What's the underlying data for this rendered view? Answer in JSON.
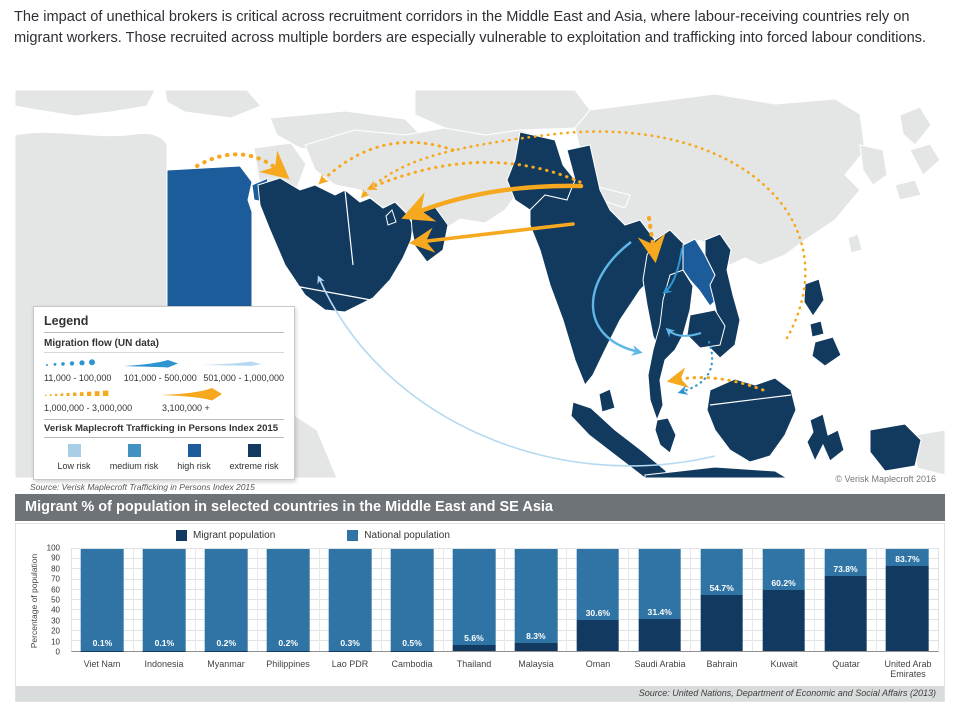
{
  "header": {
    "paragraph": "The impact of unethical brokers is critical across recruitment corridors in the Middle East and Asia, where labour-receiving countries rely on migrant workers. Those recruited across multiple borders are especially vulnerable to exploitation and trafficking into forced labour conditions."
  },
  "map": {
    "legend": {
      "title": "Legend",
      "flow_title": "Migration flow (UN data)",
      "flow_items": [
        {
          "label": "11,000 - 100,000",
          "style": "dotted-blue"
        },
        {
          "label": "101,000 - 500,000",
          "style": "solid-blue"
        },
        {
          "label": "501,000 - 1,000,000",
          "style": "solid-lightblue"
        },
        {
          "label": "1,000,000 - 3,000,000",
          "style": "dotted-orange"
        },
        {
          "label": "3,100,000 +",
          "style": "solid-orange"
        }
      ],
      "index_title": "Verisk Maplecroft Trafficking in Persons Index 2015",
      "risk_items": [
        {
          "label": "Low risk",
          "color": "#a9cfe8"
        },
        {
          "label": "medium risk",
          "color": "#4191c1"
        },
        {
          "label": "high risk",
          "color": "#1d5c9b"
        },
        {
          "label": "extreme risk",
          "color": "#123a5f"
        }
      ]
    },
    "source": "Source: Verisk Maplecroft Trafficking in Persons Index 2015",
    "copyright": "© Verisk Maplecroft 2016",
    "colors": {
      "land": "#e4e6e6",
      "sea": "#ffffff",
      "extreme_risk": "#123a5f",
      "high_risk": "#1d5c9b",
      "medium_risk": "#4191c1",
      "low_risk": "#a9cfe8",
      "flow_orange": "#f6a81e",
      "flow_blue": "#2e95d1",
      "flow_mid_blue": "#5fb7e6",
      "flow_light_blue": "#b5d9f0"
    }
  },
  "chart": {
    "title": "Migrant % of population in selected countries in the Middle East and SE Asia",
    "source": "Source: United Nations, Department of Economic and Social Affairs (2013)"
  },
  "chart_data": {
    "type": "bar",
    "stacked": true,
    "title": "Migrant % of population in selected countries in the Middle East and SE Asia",
    "categories": [
      "Viet Nam",
      "Indonesia",
      "Myanmar",
      "Philippines",
      "Lao PDR",
      "Cambodia",
      "Thailand",
      "Malaysia",
      "Oman",
      "Saudi Arabia",
      "Bahrain",
      "Kuwait",
      "Quatar",
      "United Arab Emirates"
    ],
    "series": [
      {
        "name": "Migrant population",
        "color": "#12395f",
        "values": [
          0.1,
          0.1,
          0.2,
          0.2,
          0.3,
          0.5,
          5.6,
          8.3,
          30.6,
          31.4,
          54.7,
          60.2,
          73.8,
          83.7
        ]
      },
      {
        "name": "National population",
        "color": "#2f74a4",
        "values": [
          99.9,
          99.9,
          99.8,
          99.8,
          99.7,
          99.5,
          94.4,
          91.7,
          69.4,
          68.6,
          45.3,
          39.8,
          26.2,
          16.3
        ]
      }
    ],
    "bar_labels": [
      "0.1%",
      "0.1%",
      "0.2%",
      "0.2%",
      "0.3%",
      "0.5%",
      "5.6%",
      "8.3%",
      "30.6%",
      "31.4%",
      "54.7%",
      "60.2%",
      "73.8%",
      "83.7%"
    ],
    "xlabel": "",
    "ylabel": "Percentage of population",
    "ylim": [
      0,
      100
    ],
    "yticks": [
      0,
      10,
      20,
      30,
      40,
      50,
      60,
      70,
      80,
      90,
      100
    ],
    "grid": true,
    "legend_position": "top-left"
  }
}
